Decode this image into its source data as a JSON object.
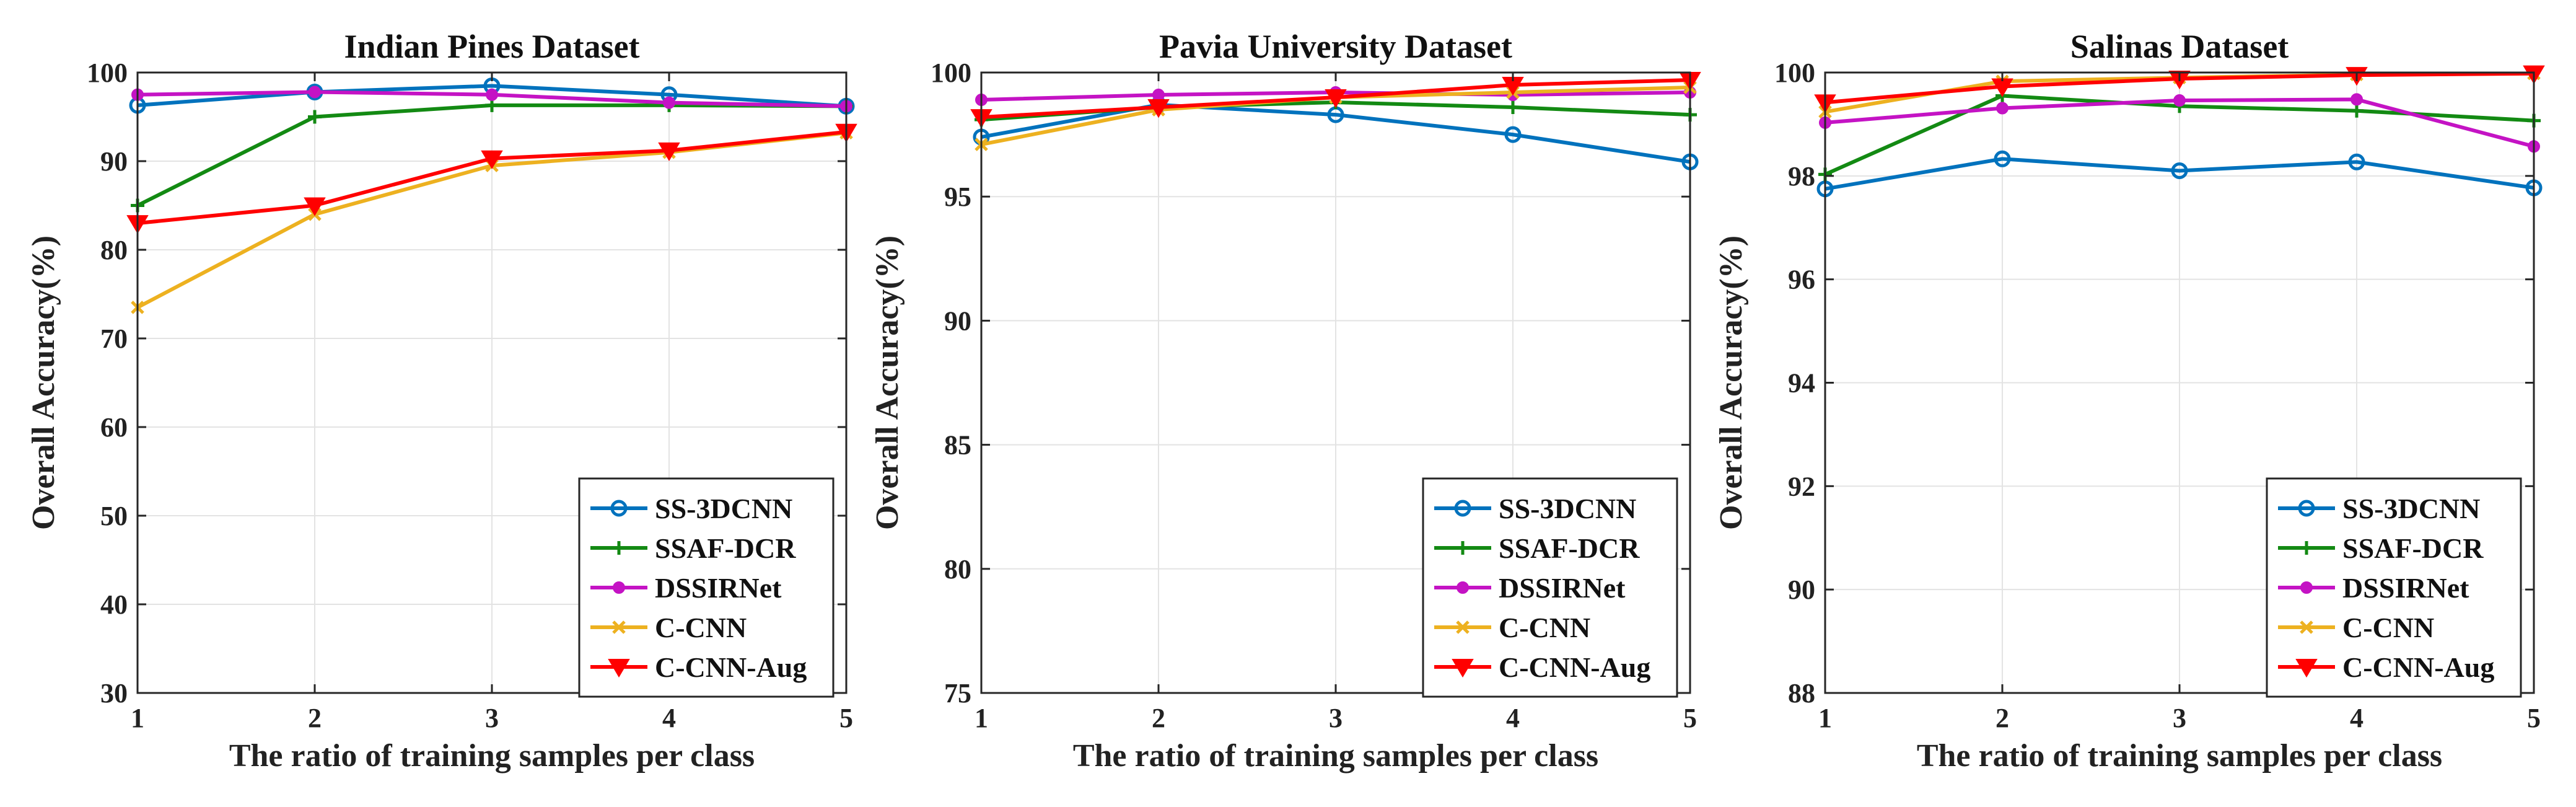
{
  "chart_data": [
    {
      "type": "line",
      "title": "Indian Pines Dataset",
      "xlabel": "The ratio of training samples per class",
      "ylabel": "Overall Accuracy(%)",
      "x": [
        1,
        2,
        3,
        4,
        5
      ],
      "xlim": [
        1,
        5
      ],
      "ylim": [
        30,
        100
      ],
      "yticks": [
        30,
        40,
        50,
        60,
        70,
        80,
        90,
        100
      ],
      "grid": true,
      "legend_position": "bottom-right",
      "series": [
        {
          "name": "SS-3DCNN",
          "values": [
            96.3,
            97.8,
            98.5,
            97.5,
            96.2
          ],
          "color": "#0072BD",
          "marker": "circle"
        },
        {
          "name": "SSAF-DCR",
          "values": [
            85.0,
            95.0,
            96.3,
            96.3,
            96.2
          ],
          "color": "#138A13",
          "marker": "plus"
        },
        {
          "name": "DSSIRNet",
          "values": [
            97.5,
            97.8,
            97.5,
            96.6,
            96.2
          ],
          "color": "#C413C4",
          "marker": "dot"
        },
        {
          "name": "C-CNN",
          "values": [
            73.5,
            84.0,
            89.5,
            91.0,
            93.2
          ],
          "color": "#EDB120",
          "marker": "x"
        },
        {
          "name": "C-CNN-Aug",
          "values": [
            83.0,
            85.0,
            90.3,
            91.2,
            93.3
          ],
          "color": "#FF0000",
          "marker": "triangle-down"
        }
      ]
    },
    {
      "type": "line",
      "title": "Pavia University Dataset",
      "xlabel": "The ratio of training samples per class",
      "ylabel": "Overall Accuracy(%)",
      "x": [
        1,
        2,
        3,
        4,
        5
      ],
      "xlim": [
        1,
        5
      ],
      "ylim": [
        75,
        100
      ],
      "yticks": [
        75,
        80,
        85,
        90,
        95,
        100
      ],
      "grid": true,
      "legend_position": "bottom-right",
      "series": [
        {
          "name": "SS-3DCNN",
          "values": [
            97.4,
            98.7,
            98.3,
            97.5,
            96.4
          ],
          "color": "#0072BD",
          "marker": "circle"
        },
        {
          "name": "SSAF-DCR",
          "values": [
            98.1,
            98.6,
            98.8,
            98.6,
            98.3
          ],
          "color": "#138A13",
          "marker": "plus"
        },
        {
          "name": "DSSIRNet",
          "values": [
            98.9,
            99.1,
            99.2,
            99.1,
            99.2
          ],
          "color": "#C413C4",
          "marker": "dot"
        },
        {
          "name": "C-CNN",
          "values": [
            97.1,
            98.5,
            99.0,
            99.2,
            99.4
          ],
          "color": "#EDB120",
          "marker": "x"
        },
        {
          "name": "C-CNN-Aug",
          "values": [
            98.2,
            98.6,
            99.0,
            99.5,
            99.7
          ],
          "color": "#FF0000",
          "marker": "triangle-down"
        }
      ]
    },
    {
      "type": "line",
      "title": "Salinas Dataset",
      "xlabel": "The ratio of training samples per class",
      "ylabel": "Overall Accuracy(%)",
      "x": [
        1,
        2,
        3,
        4,
        5
      ],
      "xlim": [
        1,
        5
      ],
      "ylim": [
        88,
        100
      ],
      "yticks": [
        88,
        90,
        92,
        94,
        96,
        98,
        100
      ],
      "grid": true,
      "legend_position": "bottom-right",
      "series": [
        {
          "name": "SS-3DCNN",
          "values": [
            97.75,
            98.33,
            98.1,
            98.27,
            97.77
          ],
          "color": "#0072BD",
          "marker": "circle"
        },
        {
          "name": "SSAF-DCR",
          "values": [
            98.03,
            99.55,
            99.35,
            99.26,
            99.07
          ],
          "color": "#138A13",
          "marker": "plus"
        },
        {
          "name": "DSSIRNet",
          "values": [
            99.03,
            99.31,
            99.46,
            99.48,
            98.57
          ],
          "color": "#C413C4",
          "marker": "dot"
        },
        {
          "name": "C-CNN",
          "values": [
            99.24,
            99.83,
            99.9,
            99.96,
            99.98
          ],
          "color": "#EDB120",
          "marker": "x"
        },
        {
          "name": "C-CNN-Aug",
          "values": [
            99.42,
            99.73,
            99.88,
            99.95,
            99.98
          ],
          "color": "#FF0000",
          "marker": "triangle-down"
        }
      ]
    }
  ]
}
